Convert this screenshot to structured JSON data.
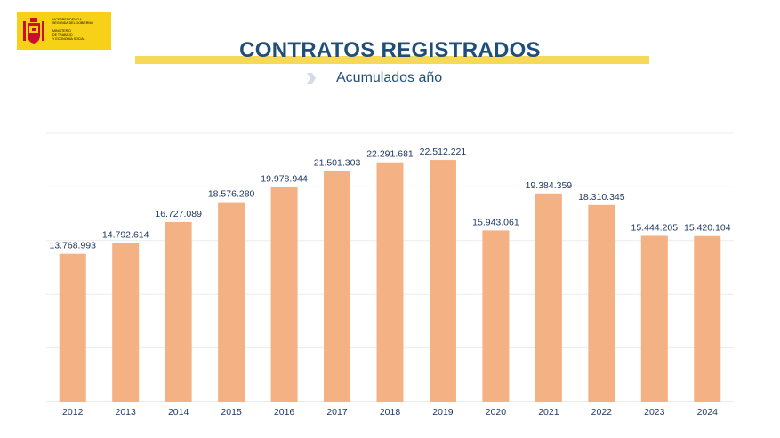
{
  "header": {
    "title": "CONTRATOS REGISTRADOS",
    "subtitle": "Acumulados  año",
    "logo_lines": [
      "Vicepresidencia",
      "Segunda del Gobierno",
      "Ministerio",
      "de Trabajo",
      "y Economía Social"
    ]
  },
  "colors": {
    "bar": "#f4b183",
    "title": "#1f4e79",
    "title_bar": "#f7d95a",
    "logo_bg": "#f7d117"
  },
  "chart_data": {
    "type": "bar",
    "title": "CONTRATOS REGISTRADOS",
    "categories": [
      "2012",
      "2013",
      "2014",
      "2015",
      "2016",
      "2017",
      "2018",
      "2019",
      "2020",
      "2021",
      "2022",
      "2023",
      "2024"
    ],
    "values": [
      13768993,
      14792614,
      16727089,
      18576280,
      19978944,
      21501303,
      22291681,
      22512221,
      15943061,
      19384359,
      18310345,
      15444205,
      15420104
    ],
    "data_labels": [
      "13.768.993",
      "14.792.614",
      "16.727.089",
      "18.576.280",
      "19.978.944",
      "21.501.303",
      "22.291.681",
      "22.512.221",
      "15.943.061",
      "19.384.359",
      "18.310.345",
      "15.444.205",
      "15.420.104"
    ],
    "xlabel": "",
    "ylabel": "",
    "ylim": [
      0,
      25000000
    ],
    "grid": true,
    "legend": "none"
  }
}
